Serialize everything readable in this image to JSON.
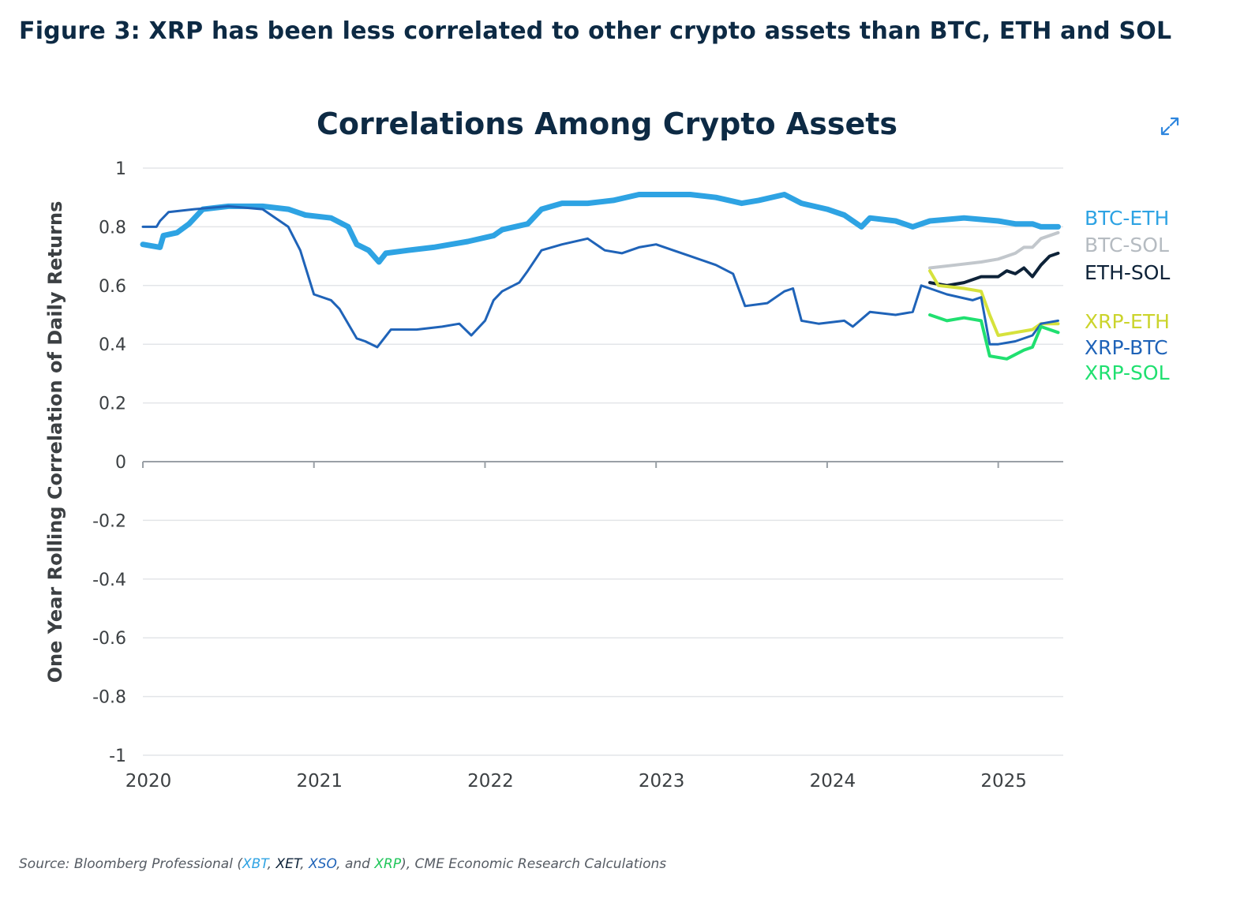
{
  "figure_title": "Figure 3: XRP has been less correlated to other crypto assets than BTC, ETH and SOL",
  "expand_icon": "expand-icon",
  "source": {
    "prefix": "Source: Bloomberg Professional (",
    "xbt": "XBT",
    "sep1": ", ",
    "xet": "XET",
    "sep2": ", ",
    "xso": "XSO",
    "sep3": ", and ",
    "xrp": "XRP",
    "suffix": "), CME Economic Research Calculations"
  },
  "chart_data": {
    "type": "line",
    "title": "Correlations Among Crypto Assets",
    "xlabel": "",
    "ylabel": "One Year Rolling Correlation of Daily Returns",
    "xlim": [
      2020.0,
      2025.38
    ],
    "ylim": [
      -1,
      1
    ],
    "yticks": [
      1,
      0.8,
      0.6,
      0.4,
      0.2,
      0,
      -0.2,
      -0.4,
      -0.6,
      -0.8,
      -1
    ],
    "ytick_labels": [
      "1",
      "0.8",
      "0.6",
      "0.4",
      "0.2",
      "0",
      "-0.2",
      "-0.4",
      "-0.6",
      "-0.8",
      "-1"
    ],
    "xticks": [
      2020,
      2021,
      2022,
      2023,
      2024,
      2025
    ],
    "xtick_labels": [
      "2020",
      "2021",
      "2022",
      "2023",
      "2024",
      "2025"
    ],
    "grid": true,
    "legend": "right",
    "series": [
      {
        "name": "BTC-ETH",
        "color": "#2ea3e3",
        "width": 7,
        "points": [
          [
            2020.0,
            0.74
          ],
          [
            2020.1,
            0.73
          ],
          [
            2020.12,
            0.77
          ],
          [
            2020.2,
            0.78
          ],
          [
            2020.27,
            0.81
          ],
          [
            2020.35,
            0.86
          ],
          [
            2020.5,
            0.87
          ],
          [
            2020.7,
            0.87
          ],
          [
            2020.85,
            0.86
          ],
          [
            2020.95,
            0.84
          ],
          [
            2021.1,
            0.83
          ],
          [
            2021.2,
            0.8
          ],
          [
            2021.25,
            0.74
          ],
          [
            2021.32,
            0.72
          ],
          [
            2021.38,
            0.68
          ],
          [
            2021.42,
            0.71
          ],
          [
            2021.55,
            0.72
          ],
          [
            2021.7,
            0.73
          ],
          [
            2021.8,
            0.74
          ],
          [
            2021.9,
            0.75
          ],
          [
            2022.05,
            0.77
          ],
          [
            2022.1,
            0.79
          ],
          [
            2022.25,
            0.81
          ],
          [
            2022.33,
            0.86
          ],
          [
            2022.45,
            0.88
          ],
          [
            2022.6,
            0.88
          ],
          [
            2022.75,
            0.89
          ],
          [
            2022.9,
            0.91
          ],
          [
            2023.0,
            0.91
          ],
          [
            2023.2,
            0.91
          ],
          [
            2023.35,
            0.9
          ],
          [
            2023.5,
            0.88
          ],
          [
            2023.6,
            0.89
          ],
          [
            2023.75,
            0.91
          ],
          [
            2023.85,
            0.88
          ],
          [
            2024.0,
            0.86
          ],
          [
            2024.1,
            0.84
          ],
          [
            2024.2,
            0.8
          ],
          [
            2024.25,
            0.83
          ],
          [
            2024.4,
            0.82
          ],
          [
            2024.5,
            0.8
          ],
          [
            2024.6,
            0.82
          ],
          [
            2024.8,
            0.83
          ],
          [
            2025.0,
            0.82
          ],
          [
            2025.1,
            0.81
          ],
          [
            2025.2,
            0.81
          ],
          [
            2025.25,
            0.8
          ],
          [
            2025.35,
            0.8
          ]
        ]
      },
      {
        "name": "BTC-SOL",
        "color": "#c2c7cc",
        "width": 4,
        "points": [
          [
            2024.6,
            0.66
          ],
          [
            2024.75,
            0.67
          ],
          [
            2024.9,
            0.68
          ],
          [
            2025.0,
            0.69
          ],
          [
            2025.1,
            0.71
          ],
          [
            2025.15,
            0.73
          ],
          [
            2025.2,
            0.73
          ],
          [
            2025.25,
            0.76
          ],
          [
            2025.35,
            0.78
          ]
        ]
      },
      {
        "name": "ETH-SOL",
        "color": "#0d2238",
        "width": 4,
        "points": [
          [
            2024.6,
            0.61
          ],
          [
            2024.7,
            0.6
          ],
          [
            2024.8,
            0.61
          ],
          [
            2024.9,
            0.63
          ],
          [
            2025.0,
            0.63
          ],
          [
            2025.05,
            0.65
          ],
          [
            2025.1,
            0.64
          ],
          [
            2025.15,
            0.66
          ],
          [
            2025.2,
            0.63
          ],
          [
            2025.25,
            0.67
          ],
          [
            2025.3,
            0.7
          ],
          [
            2025.35,
            0.71
          ]
        ]
      },
      {
        "name": "XRP-ETH",
        "color": "#d6e23c",
        "width": 4,
        "points": [
          [
            2024.6,
            0.65
          ],
          [
            2024.65,
            0.6
          ],
          [
            2024.8,
            0.59
          ],
          [
            2024.9,
            0.58
          ],
          [
            2024.95,
            0.5
          ],
          [
            2025.0,
            0.43
          ],
          [
            2025.1,
            0.44
          ],
          [
            2025.2,
            0.45
          ],
          [
            2025.25,
            0.47
          ],
          [
            2025.35,
            0.47
          ]
        ]
      },
      {
        "name": "XRP-BTC",
        "color": "#1f63b8",
        "width": 3,
        "points": [
          [
            2020.0,
            0.8
          ],
          [
            2020.08,
            0.8
          ],
          [
            2020.1,
            0.82
          ],
          [
            2020.15,
            0.85
          ],
          [
            2020.3,
            0.86
          ],
          [
            2020.5,
            0.87
          ],
          [
            2020.7,
            0.86
          ],
          [
            2020.85,
            0.8
          ],
          [
            2020.92,
            0.72
          ],
          [
            2021.0,
            0.57
          ],
          [
            2021.1,
            0.55
          ],
          [
            2021.15,
            0.52
          ],
          [
            2021.2,
            0.47
          ],
          [
            2021.25,
            0.42
          ],
          [
            2021.3,
            0.41
          ],
          [
            2021.37,
            0.39
          ],
          [
            2021.45,
            0.45
          ],
          [
            2021.6,
            0.45
          ],
          [
            2021.75,
            0.46
          ],
          [
            2021.85,
            0.47
          ],
          [
            2021.92,
            0.43
          ],
          [
            2022.0,
            0.48
          ],
          [
            2022.05,
            0.55
          ],
          [
            2022.1,
            0.58
          ],
          [
            2022.2,
            0.61
          ],
          [
            2022.25,
            0.65
          ],
          [
            2022.33,
            0.72
          ],
          [
            2022.45,
            0.74
          ],
          [
            2022.6,
            0.76
          ],
          [
            2022.7,
            0.72
          ],
          [
            2022.8,
            0.71
          ],
          [
            2022.9,
            0.73
          ],
          [
            2023.0,
            0.74
          ],
          [
            2023.1,
            0.72
          ],
          [
            2023.2,
            0.7
          ],
          [
            2023.35,
            0.67
          ],
          [
            2023.45,
            0.64
          ],
          [
            2023.52,
            0.53
          ],
          [
            2023.65,
            0.54
          ],
          [
            2023.75,
            0.58
          ],
          [
            2023.8,
            0.59
          ],
          [
            2023.85,
            0.48
          ],
          [
            2023.95,
            0.47
          ],
          [
            2024.1,
            0.48
          ],
          [
            2024.15,
            0.46
          ],
          [
            2024.25,
            0.51
          ],
          [
            2024.4,
            0.5
          ],
          [
            2024.5,
            0.51
          ],
          [
            2024.55,
            0.6
          ],
          [
            2024.6,
            0.59
          ],
          [
            2024.7,
            0.57
          ],
          [
            2024.85,
            0.55
          ],
          [
            2024.9,
            0.56
          ],
          [
            2024.95,
            0.4
          ],
          [
            2025.0,
            0.4
          ],
          [
            2025.1,
            0.41
          ],
          [
            2025.2,
            0.43
          ],
          [
            2025.25,
            0.47
          ],
          [
            2025.35,
            0.48
          ]
        ]
      },
      {
        "name": "XRP-SOL",
        "color": "#20e070",
        "width": 4,
        "points": [
          [
            2024.6,
            0.5
          ],
          [
            2024.7,
            0.48
          ],
          [
            2024.8,
            0.49
          ],
          [
            2024.9,
            0.48
          ],
          [
            2024.95,
            0.36
          ],
          [
            2025.05,
            0.35
          ],
          [
            2025.15,
            0.38
          ],
          [
            2025.2,
            0.39
          ],
          [
            2025.25,
            0.46
          ],
          [
            2025.35,
            0.44
          ]
        ]
      }
    ],
    "legend_labels": [
      {
        "name": "BTC-ETH",
        "color": "#2ea3e3"
      },
      {
        "name": "BTC-SOL",
        "color": "#b5bbc1"
      },
      {
        "name": "ETH-SOL",
        "color": "#0d2238"
      },
      {
        "name": "XRP-ETH",
        "color": "#cbd42c"
      },
      {
        "name": "XRP-BTC",
        "color": "#1f63b8"
      },
      {
        "name": "XRP-SOL",
        "color": "#20e070"
      }
    ]
  }
}
